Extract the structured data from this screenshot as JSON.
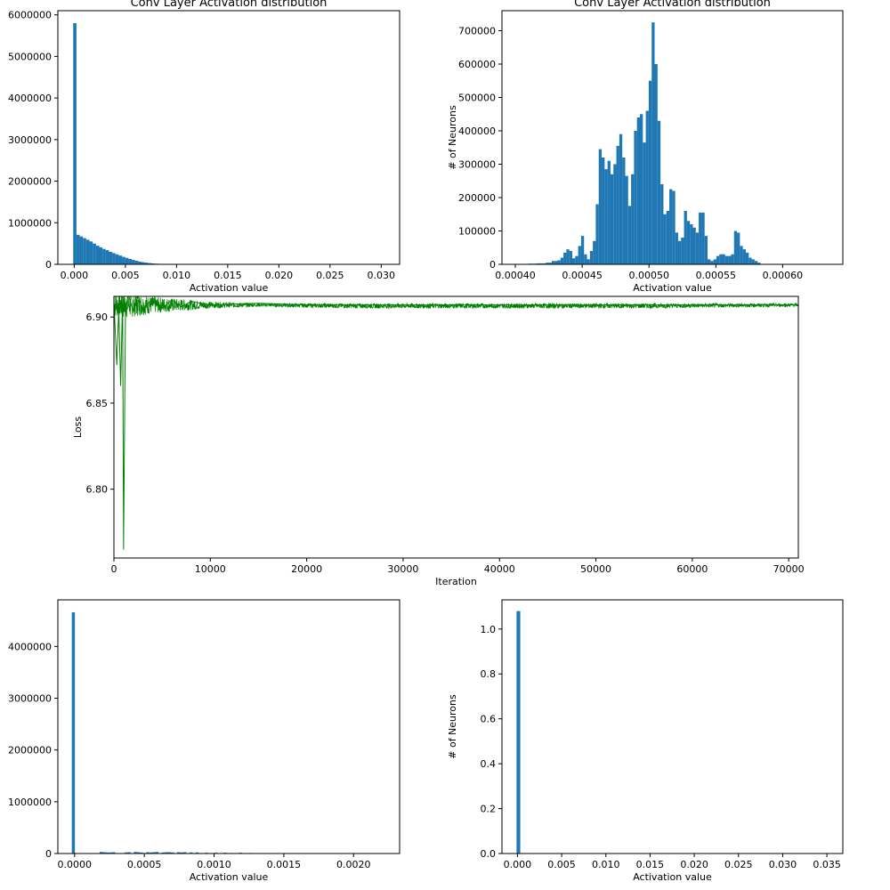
{
  "chart_data": [
    {
      "type": "bar",
      "title": "Conv Layer Activation distribution",
      "xlabel": "Activation value",
      "ylabel": "",
      "xlim": [
        -0.0016,
        0.0318
      ],
      "ylim": [
        0,
        6100000
      ],
      "xticks": [
        0.0,
        0.005,
        0.01,
        0.015,
        0.02,
        0.025,
        0.03
      ],
      "xtick_labels": [
        "0.000",
        "0.005",
        "0.010",
        "0.015",
        "0.020",
        "0.025",
        "0.030"
      ],
      "yticks": [
        0,
        1000000,
        2000000,
        3000000,
        4000000,
        5000000,
        6000000
      ],
      "ytick_labels": [
        "0",
        "1000000",
        "2000000",
        "3000000",
        "4000000",
        "5000000",
        "6000000"
      ],
      "bar_color": "#1f77b4",
      "bins": {
        "start": -0.0001,
        "width": 0.000318,
        "counts": [
          5800000,
          710000,
          670000,
          630000,
          590000,
          550000,
          500000,
          450000,
          410000,
          370000,
          340000,
          300000,
          270000,
          240000,
          210000,
          180000,
          155000,
          130000,
          105000,
          85000,
          65000,
          52000,
          40000,
          30000,
          22000,
          16000,
          12000,
          9000,
          7000,
          6000,
          5000,
          4000,
          3000,
          2500,
          2000,
          1500,
          1200,
          1000,
          800,
          600
        ]
      }
    },
    {
      "type": "bar",
      "title": "Conv Layer Activation distribution",
      "xlabel": "Activation value",
      "ylabel": "# of Neurons",
      "xlim": [
        0.00039,
        0.000645
      ],
      "ylim": [
        0,
        760000
      ],
      "xticks": [
        0.0004,
        0.00045,
        0.0005,
        0.00055,
        0.0006
      ],
      "xtick_labels": [
        "0.00040",
        "0.00045",
        "0.00050",
        "0.00055",
        "0.00060"
      ],
      "yticks": [
        0,
        100000,
        200000,
        300000,
        400000,
        500000,
        600000,
        700000
      ],
      "ytick_labels": [
        "0",
        "100000",
        "200000",
        "300000",
        "400000",
        "500000",
        "600000",
        "700000"
      ],
      "bar_color": "#1f77b4",
      "bins": {
        "start": 0.000403,
        "width": 2.2e-06,
        "counts": [
          1000,
          1000,
          1000,
          2000,
          2000,
          2000,
          3000,
          3000,
          3000,
          5000,
          5000,
          10000,
          10000,
          12000,
          20000,
          35000,
          45000,
          40000,
          18000,
          25000,
          55000,
          85000,
          30000,
          15000,
          40000,
          70000,
          180000,
          345000,
          320000,
          285000,
          310000,
          270000,
          300000,
          355000,
          390000,
          320000,
          265000,
          175000,
          270000,
          400000,
          440000,
          450000,
          365000,
          460000,
          550000,
          725000,
          600000,
          430000,
          240000,
          150000,
          160000,
          225000,
          220000,
          95000,
          70000,
          80000,
          160000,
          130000,
          120000,
          110000,
          95000,
          155000,
          155000,
          85000,
          15000,
          10000,
          15000,
          25000,
          30000,
          30000,
          25000,
          25000,
          30000,
          100000,
          95000,
          55000,
          45000,
          35000,
          20000,
          15000,
          10000,
          5000
        ]
      }
    },
    {
      "type": "line",
      "title": "",
      "xlabel": "Iteration",
      "ylabel": "Loss",
      "xlim": [
        0,
        71000
      ],
      "ylim": [
        6.76,
        6.912
      ],
      "xticks": [
        0,
        10000,
        20000,
        30000,
        40000,
        50000,
        60000,
        70000
      ],
      "xtick_labels": [
        "0",
        "10000",
        "20000",
        "30000",
        "40000",
        "50000",
        "60000",
        "70000"
      ],
      "yticks": [
        6.8,
        6.85,
        6.9
      ],
      "ytick_labels": [
        "6.80",
        "6.85",
        "6.90"
      ],
      "series": [
        {
          "line_color": "#008000",
          "x": [
            0,
            300,
            500,
            700,
            900,
            1000,
            1200,
            1500,
            2000,
            2500,
            3000,
            4000,
            5000,
            6000,
            7000,
            8000,
            10000,
            15000,
            20000,
            30000,
            40000,
            50000,
            60000,
            71000
          ],
          "y": [
            6.909,
            6.872,
            6.905,
            6.86,
            6.912,
            6.765,
            6.905,
            6.913,
            6.903,
            6.912,
            6.904,
            6.911,
            6.905,
            6.91,
            6.906,
            6.909,
            6.907,
            6.908,
            6.907,
            6.907,
            6.907,
            6.907,
            6.907,
            6.907
          ],
          "envelope": {
            "x": [
              0,
              1000,
              2000,
              3000,
              4000,
              6000,
              8000,
              10000,
              15000,
              25000,
              40000,
              55000,
              71000
            ],
            "y_min": [
              6.9,
              6.899,
              6.9,
              6.901,
              6.902,
              6.903,
              6.904,
              6.905,
              6.906,
              6.905,
              6.905,
              6.905,
              6.906
            ],
            "y_max": [
              6.915,
              6.915,
              6.914,
              6.913,
              6.912,
              6.911,
              6.91,
              6.909,
              6.908,
              6.908,
              6.908,
              6.908,
              6.908
            ]
          }
        }
      ]
    },
    {
      "type": "bar",
      "title": "",
      "xlabel": "Activation value",
      "ylabel": "",
      "xlim": [
        -0.00012,
        0.00233
      ],
      "ylim": [
        0,
        4900000
      ],
      "xticks": [
        0.0,
        0.0005,
        0.001,
        0.0015,
        0.002
      ],
      "xtick_labels": [
        "0.0000",
        "0.0005",
        "0.0010",
        "0.0015",
        "0.0020"
      ],
      "yticks": [
        0,
        1000000,
        2000000,
        3000000,
        4000000
      ],
      "ytick_labels": [
        "0",
        "1000000",
        "2000000",
        "3000000",
        "4000000"
      ],
      "bar_color": "#1f77b4",
      "bins": {
        "start": -2e-05,
        "width": 2.22e-05,
        "counts": [
          4660000,
          0,
          0,
          0,
          0,
          0,
          0,
          0,
          0,
          30000,
          25000,
          20000,
          20000,
          25000,
          0,
          0,
          0,
          20000,
          25000,
          0,
          30000,
          25000,
          20000,
          0,
          25000,
          20000,
          25000,
          30000,
          0,
          20000,
          25000,
          25000,
          20000,
          0,
          25000,
          20000,
          25000,
          0,
          20000,
          0,
          20000,
          0,
          0,
          15000,
          0,
          0,
          15000,
          0,
          0,
          15000,
          0,
          10000,
          0,
          0,
          15000,
          0,
          0,
          10000,
          0,
          0
        ]
      }
    },
    {
      "type": "bar",
      "title": "",
      "xlabel": "Activation value",
      "ylabel": "# of Neurons",
      "xlim": [
        -0.00175,
        0.0368
      ],
      "ylim": [
        0,
        1.13
      ],
      "xticks": [
        0.0,
        0.005,
        0.01,
        0.015,
        0.02,
        0.025,
        0.03,
        0.035
      ],
      "xtick_labels": [
        "0.000",
        "0.005",
        "0.010",
        "0.015",
        "0.020",
        "0.025",
        "0.030",
        "0.035"
      ],
      "yticks": [
        0,
        0.2,
        0.4,
        0.6,
        0.8,
        1.0
      ],
      "ytick_labels": [
        "0.0",
        "0.2",
        "0.4",
        "0.6",
        "0.8",
        "1.0"
      ],
      "bar_color": "#1f77b4",
      "bins": {
        "start": -0.0001,
        "width": 0.00042,
        "counts": [
          1.08
        ]
      }
    }
  ]
}
